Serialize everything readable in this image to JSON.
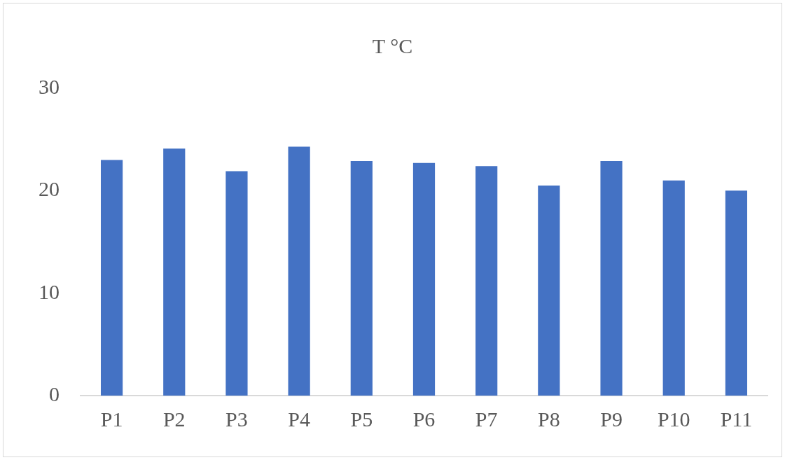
{
  "chart_data": {
    "type": "bar",
    "title": "T °C",
    "categories": [
      "P1",
      "P2",
      "P3",
      "P4",
      "P5",
      "P6",
      "P7",
      "P8",
      "P9",
      "P10",
      "P11"
    ],
    "values": [
      23.0,
      24.1,
      21.9,
      24.3,
      22.9,
      22.7,
      22.4,
      20.5,
      22.9,
      21.0,
      20.0
    ],
    "color": "#4472c4",
    "ylim": [
      0,
      30
    ],
    "yticks": [
      0,
      10,
      20,
      30
    ],
    "grid": false,
    "legend": false
  }
}
